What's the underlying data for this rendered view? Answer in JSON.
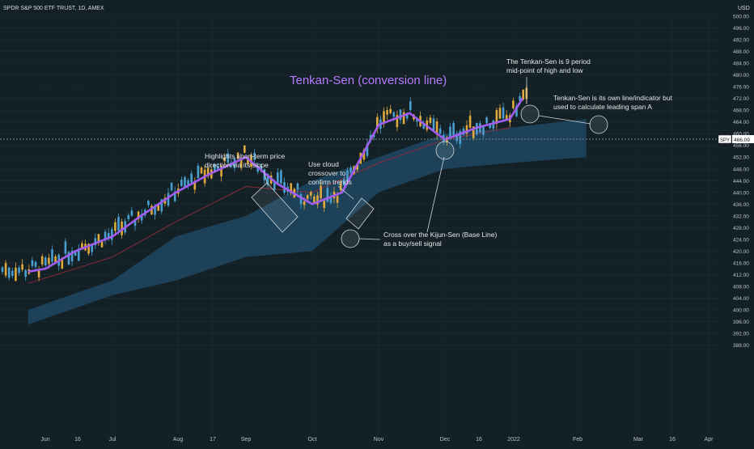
{
  "header": {
    "symbol_title": "SPDR S&P 500 ETF TRUST, 1D, AMEX",
    "currency": "USD"
  },
  "colors": {
    "background": "#132026",
    "grid": "#1d2e35",
    "up_candle": "#4a9fd0",
    "down_candle": "#e0a93c",
    "tenkan": "#a35cf0",
    "kijun": "#8a2a3a",
    "cloud": "#1f4a66",
    "annotation": "#e6e6e6",
    "title": "#b57bff"
  },
  "price_label": {
    "symbol": "SPY",
    "value": "466.09"
  },
  "chart_data": {
    "type": "candlestick",
    "title": "Tenkan-Sen (conversion line)",
    "y_axis": {
      "min": 386,
      "max": 502,
      "ticks": [
        "500.00",
        "496.00",
        "492.00",
        "488.00",
        "484.00",
        "480.00",
        "476.00",
        "472.00",
        "468.00",
        "464.00",
        "460.00",
        "456.00",
        "452.00",
        "448.00",
        "444.00",
        "440.00",
        "436.00",
        "432.00",
        "428.00",
        "424.00",
        "420.00",
        "416.00",
        "412.00",
        "408.00",
        "404.00",
        "400.00",
        "396.00",
        "392.00",
        "388.00"
      ]
    },
    "x_axis": {
      "ticks": [
        "Jun",
        "16",
        "Jul",
        "Aug",
        "17",
        "Sep",
        "Oct",
        "Nov",
        "Dec",
        "16",
        "2022",
        "Feb",
        "Mar",
        "16",
        "Apr"
      ]
    },
    "series": [
      {
        "name": "Tenkan-Sen",
        "x": [
          "2021-05-24",
          "2021-06-01",
          "2021-06-15",
          "2021-07-01",
          "2021-07-15",
          "2021-08-01",
          "2021-08-15",
          "2021-09-01",
          "2021-09-15",
          "2021-10-01",
          "2021-10-15",
          "2021-11-01",
          "2021-11-15",
          "2021-12-01",
          "2021-12-15",
          "2022-01-01",
          "2022-01-07"
        ],
        "y": [
          413,
          414,
          420,
          425,
          432,
          440,
          446,
          452,
          443,
          436,
          440,
          463,
          467,
          458,
          462,
          465,
          472
        ]
      },
      {
        "name": "Kijun-Sen",
        "x": [
          "2021-05-24",
          "2021-07-01",
          "2021-08-01",
          "2021-09-01",
          "2021-10-01",
          "2021-11-01",
          "2021-12-01",
          "2022-01-01"
        ],
        "y": [
          409,
          418,
          430,
          442,
          440,
          450,
          458,
          462
        ]
      }
    ],
    "cloud": {
      "x": [
        "2021-05-24",
        "2021-07-01",
        "2021-08-01",
        "2021-09-01",
        "2021-10-01",
        "2021-11-01",
        "2021-12-01",
        "2022-01-01",
        "2022-02-05"
      ],
      "upper": [
        400,
        410,
        425,
        432,
        444,
        452,
        460,
        462,
        465
      ],
      "lower": [
        395,
        405,
        410,
        418,
        420,
        440,
        448,
        450,
        452
      ]
    },
    "annotations": [
      [
        "The Tenkan-Sen is 9 period",
        "mid-point of high and low"
      ],
      [
        "Tenkan-Sen is its own line/indicator but",
        "used to calculate leading span A"
      ],
      [
        "Highlights short-term price",
        "direction via its slope"
      ],
      [
        "Use cloud",
        "crossover to",
        "confirm trends"
      ],
      [
        "Cross over the Kijun-Sen (Base Line)",
        "as a buy/sell signal"
      ]
    ]
  }
}
